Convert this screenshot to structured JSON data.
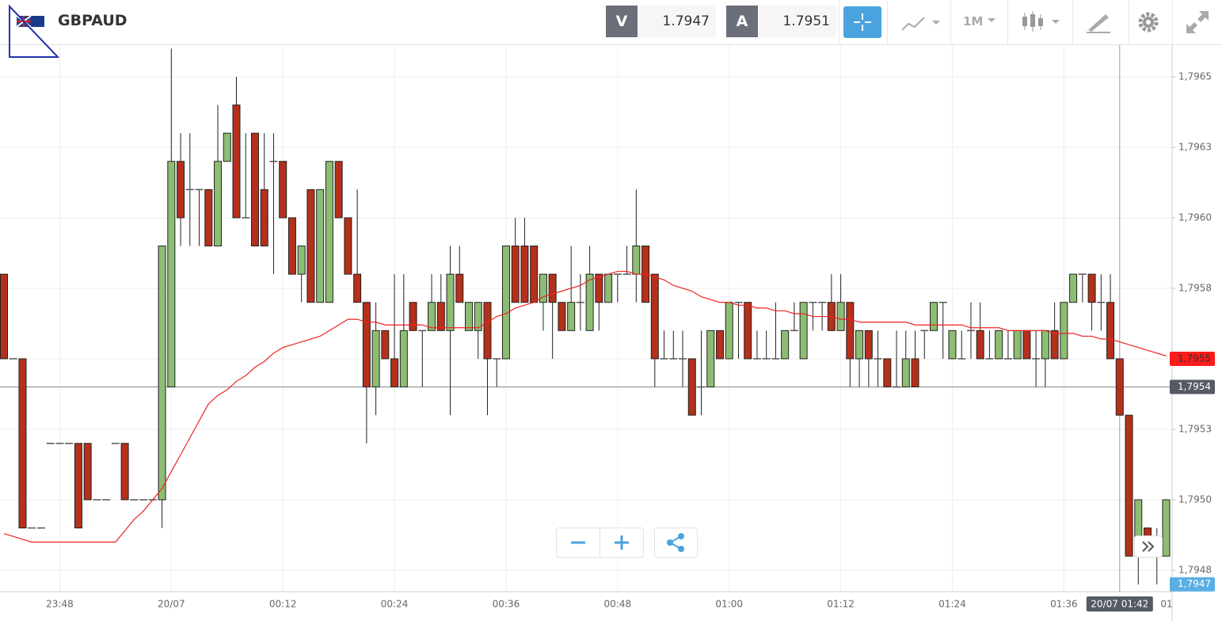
{
  "header": {
    "symbol": "GBPAUD",
    "sell_label": "V",
    "sell": 1.7947,
    "buy_label": "A",
    "buy": 1.7951,
    "timeframe": "1M"
  },
  "chart_data": {
    "type": "candlestick",
    "categories": [
      null,
      null,
      null,
      null,
      null,
      null,
      "23:48",
      null,
      null,
      null,
      null,
      null,
      null,
      null,
      null,
      null,
      null,
      null,
      "20/07",
      null,
      null,
      null,
      null,
      null,
      null,
      null,
      null,
      null,
      null,
      null,
      "00:12",
      null,
      null,
      null,
      null,
      null,
      null,
      null,
      null,
      null,
      null,
      null,
      "00:24",
      null,
      null,
      null,
      null,
      null,
      null,
      null,
      null,
      null,
      null,
      null,
      "00:36",
      null,
      null,
      null,
      null,
      null,
      null,
      null,
      null,
      null,
      null,
      null,
      "00:48",
      null,
      null,
      null,
      null,
      null,
      null,
      null,
      null,
      null,
      null,
      null,
      "01:00",
      null,
      null,
      null,
      null,
      null,
      null,
      null,
      null,
      null,
      null,
      null,
      "01:12",
      null,
      null,
      null,
      null,
      null,
      null,
      null,
      null,
      null,
      null,
      null,
      "01:24",
      null,
      null,
      null,
      null,
      null,
      null,
      null,
      null,
      null,
      null,
      null,
      "01:36",
      null,
      null,
      null,
      null,
      null,
      null,
      null,
      null,
      null,
      null,
      null
    ],
    "x_edge_label": "01",
    "open": [
      1.7958,
      1.7955,
      1.7955,
      1.7949,
      1.7949,
      1.7952,
      1.7952,
      1.7952,
      1.7952,
      1.7952,
      1.795,
      1.795,
      1.7952,
      1.7952,
      1.795,
      1.795,
      1.795,
      1.795,
      1.7954,
      1.7962,
      1.7961,
      1.7961,
      1.7961,
      1.7959,
      1.7962,
      1.7964,
      1.796,
      1.7963,
      1.7961,
      1.7962,
      1.7962,
      1.796,
      1.7958,
      1.7961,
      1.7957,
      1.7957,
      1.7962,
      1.796,
      1.7958,
      1.7957,
      1.7954,
      1.7956,
      1.7955,
      1.7954,
      1.7957,
      1.7956,
      1.7956,
      1.7957,
      1.7956,
      1.7958,
      1.7956,
      1.7956,
      1.7957,
      1.7955,
      1.7955,
      1.7959,
      1.7959,
      1.7959,
      1.7957,
      1.7958,
      1.7957,
      1.7956,
      1.7957,
      1.7956,
      1.7958,
      1.7957,
      1.7958,
      1.7958,
      1.7958,
      1.7959,
      1.7958,
      1.7955,
      1.7955,
      1.7955,
      1.7955,
      1.7954,
      1.7954,
      1.7956,
      1.7955,
      1.7957,
      1.7957,
      1.7955,
      1.7955,
      1.7955,
      1.7955,
      1.7956,
      1.7955,
      1.7957,
      1.7957,
      1.7957,
      1.7956,
      1.7957,
      1.7955,
      1.7956,
      1.7955,
      1.7955,
      1.7954,
      1.7954,
      1.7955,
      1.7956,
      1.7956,
      1.7957,
      1.7955,
      1.7955,
      1.7956,
      1.7956,
      1.7955,
      1.7955,
      1.7955,
      1.7955,
      1.7956,
      1.7955,
      1.7955,
      1.7956,
      1.7955,
      1.7957,
      1.7958,
      1.7958,
      1.7957,
      1.7957,
      1.7955,
      1.7953,
      1.7948,
      1.7949,
      1.7948,
      1.7948
    ],
    "high": [
      1.7958,
      1.7955,
      1.7955,
      1.7949,
      1.7949,
      1.7952,
      1.7952,
      1.7952,
      1.7952,
      1.7952,
      1.795,
      1.795,
      1.7952,
      1.7952,
      1.795,
      1.795,
      1.795,
      1.7959,
      1.7966,
      1.7963,
      1.7963,
      1.7961,
      1.7961,
      1.7964,
      1.7963,
      1.7965,
      1.7963,
      1.7963,
      1.7963,
      1.7963,
      1.7962,
      1.796,
      1.7959,
      1.7961,
      1.7961,
      1.7962,
      1.7962,
      1.796,
      1.7961,
      1.7957,
      1.7957,
      1.7956,
      1.7958,
      1.7958,
      1.7957,
      1.7956,
      1.7958,
      1.7958,
      1.7959,
      1.7959,
      1.7957,
      1.7957,
      1.7957,
      1.7955,
      1.7959,
      1.796,
      1.796,
      1.7959,
      1.7958,
      1.7958,
      1.7957,
      1.7959,
      1.7958,
      1.7959,
      1.7958,
      1.7958,
      1.7958,
      1.7959,
      1.7961,
      1.7959,
      1.7958,
      1.7956,
      1.7956,
      1.7956,
      1.7955,
      1.7956,
      1.7956,
      1.7956,
      1.7957,
      1.7957,
      1.7957,
      1.7956,
      1.7956,
      1.7957,
      1.7956,
      1.7957,
      1.7957,
      1.7957,
      1.7957,
      1.7958,
      1.7958,
      1.7957,
      1.7956,
      1.7956,
      1.7956,
      1.7955,
      1.7956,
      1.7956,
      1.7956,
      1.7956,
      1.7957,
      1.7957,
      1.7956,
      1.7956,
      1.7957,
      1.7957,
      1.7956,
      1.7956,
      1.7956,
      1.7956,
      1.7956,
      1.7956,
      1.7956,
      1.7957,
      1.7957,
      1.7958,
      1.7958,
      1.7958,
      1.7958,
      1.7958,
      1.7955,
      1.7953,
      1.795,
      1.7949,
      1.7949,
      1.795
    ],
    "low": [
      1.7955,
      1.7955,
      1.7949,
      1.7949,
      1.7949,
      1.7952,
      1.7952,
      1.7952,
      1.7949,
      1.795,
      1.795,
      1.795,
      1.7952,
      1.795,
      1.795,
      1.795,
      1.795,
      1.7949,
      1.7954,
      1.7959,
      1.7959,
      1.7959,
      1.7959,
      1.7959,
      1.7962,
      1.796,
      1.796,
      1.7959,
      1.7959,
      1.7958,
      1.796,
      1.7958,
      1.7957,
      1.7957,
      1.7957,
      1.7957,
      1.796,
      1.7958,
      1.7957,
      1.7952,
      1.7953,
      1.7955,
      1.7954,
      1.7954,
      1.7956,
      1.7954,
      1.7956,
      1.7956,
      1.7953,
      1.7957,
      1.7956,
      1.7955,
      1.7953,
      1.7954,
      1.7955,
      1.7957,
      1.7957,
      1.7957,
      1.7956,
      1.7955,
      1.7956,
      1.7956,
      1.7956,
      1.7956,
      1.7956,
      1.7957,
      1.7957,
      1.7958,
      1.7957,
      1.7957,
      1.7954,
      1.7955,
      1.7955,
      1.7954,
      1.7953,
      1.7953,
      1.7954,
      1.7955,
      1.7955,
      1.7955,
      1.7955,
      1.7955,
      1.7955,
      1.7955,
      1.7955,
      1.7956,
      1.7955,
      1.7956,
      1.7956,
      1.7956,
      1.7956,
      1.7954,
      1.7954,
      1.7954,
      1.7954,
      1.7954,
      1.7954,
      1.7954,
      1.7954,
      1.7955,
      1.7956,
      1.7955,
      1.7955,
      1.7955,
      1.7955,
      1.7955,
      1.7955,
      1.7955,
      1.7955,
      1.7955,
      1.7955,
      1.7954,
      1.7954,
      1.7955,
      1.7955,
      1.7957,
      1.7957,
      1.7956,
      1.7956,
      1.7955,
      1.7953,
      1.7948,
      1.7947,
      1.7948,
      1.7947,
      1.7948
    ],
    "close": [
      1.7955,
      1.7955,
      1.7949,
      1.7949,
      1.7949,
      1.7952,
      1.7952,
      1.7952,
      1.7949,
      1.795,
      1.795,
      1.795,
      1.7952,
      1.795,
      1.795,
      1.795,
      1.795,
      1.7959,
      1.7962,
      1.796,
      1.7961,
      1.7961,
      1.7959,
      1.7962,
      1.7963,
      1.796,
      1.796,
      1.7959,
      1.7959,
      1.7962,
      1.796,
      1.7958,
      1.7959,
      1.7957,
      1.7961,
      1.7962,
      1.796,
      1.7958,
      1.7957,
      1.7954,
      1.7956,
      1.7955,
      1.7954,
      1.7956,
      1.7956,
      1.7956,
      1.7957,
      1.7956,
      1.7958,
      1.7957,
      1.7957,
      1.7957,
      1.7955,
      1.7955,
      1.7959,
      1.7957,
      1.7957,
      1.7957,
      1.7958,
      1.7957,
      1.7956,
      1.7957,
      1.7957,
      1.7958,
      1.7957,
      1.7958,
      1.7958,
      1.7958,
      1.7959,
      1.7957,
      1.7955,
      1.7955,
      1.7955,
      1.7955,
      1.7953,
      1.7954,
      1.7956,
      1.7955,
      1.7957,
      1.7957,
      1.7955,
      1.7955,
      1.7955,
      1.7955,
      1.7956,
      1.7956,
      1.7957,
      1.7957,
      1.7957,
      1.7956,
      1.7957,
      1.7955,
      1.7956,
      1.7955,
      1.7955,
      1.7954,
      1.7954,
      1.7955,
      1.7954,
      1.7956,
      1.7957,
      1.7957,
      1.7956,
      1.7955,
      1.7956,
      1.7955,
      1.7955,
      1.7956,
      1.7955,
      1.7956,
      1.7955,
      1.7955,
      1.7956,
      1.7955,
      1.7957,
      1.7958,
      1.7958,
      1.7957,
      1.7957,
      1.7955,
      1.7953,
      1.7948,
      1.795,
      1.7948,
      1.7948,
      1.795
    ],
    "up_color": "#8dbd73",
    "down_color": "#b5301a",
    "doji_color": "#555555",
    "ma_color": "#ee2222",
    "ma_values": [
      1.79488,
      1.79487,
      1.79486,
      1.79485,
      1.79485,
      1.79485,
      1.79485,
      1.79485,
      1.79485,
      1.79485,
      1.79485,
      1.79485,
      1.79485,
      1.79489,
      1.79493,
      1.79496,
      1.795,
      1.79504,
      1.7951,
      1.79516,
      1.79522,
      1.79528,
      1.79534,
      1.79537,
      1.79539,
      1.79542,
      1.79544,
      1.79547,
      1.79549,
      1.79552,
      1.79554,
      1.79555,
      1.79556,
      1.79557,
      1.79558,
      1.7956,
      1.79562,
      1.79564,
      1.79564,
      1.79563,
      1.79563,
      1.79562,
      1.79562,
      1.79562,
      1.79562,
      1.79562,
      1.79561,
      1.79561,
      1.79561,
      1.79561,
      1.79561,
      1.79561,
      1.79563,
      1.79565,
      1.79566,
      1.79568,
      1.79569,
      1.7957,
      1.79572,
      1.79573,
      1.79574,
      1.79575,
      1.79576,
      1.79578,
      1.79579,
      1.7958,
      1.79581,
      1.79581,
      1.7958,
      1.7958,
      1.79579,
      1.79578,
      1.79576,
      1.79575,
      1.79574,
      1.79572,
      1.79571,
      1.7957,
      1.7957,
      1.79569,
      1.79569,
      1.79568,
      1.79568,
      1.79567,
      1.79567,
      1.79566,
      1.79566,
      1.79565,
      1.79565,
      1.79565,
      1.79564,
      1.79564,
      1.79563,
      1.79563,
      1.79563,
      1.79563,
      1.79563,
      1.79563,
      1.79562,
      1.79562,
      1.79562,
      1.79562,
      1.79562,
      1.79562,
      1.79561,
      1.79561,
      1.79561,
      1.79561,
      1.7956,
      1.7956,
      1.7956,
      1.7956,
      1.7956,
      1.79559,
      1.79559,
      1.79559,
      1.79558,
      1.79558,
      1.79557,
      1.79557,
      1.79556,
      1.79555,
      1.79554,
      1.79553,
      1.79552,
      1.79551
    ],
    "ylim": [
      1.794674,
      1.796615
    ],
    "yticks": [
      {
        "value": 1.79475,
        "label": "1,7948"
      },
      {
        "value": 1.795,
        "label": "1,7950"
      },
      {
        "value": 1.79525,
        "label": "1,7953"
      },
      {
        "value": 1.7955,
        "label": "1,7955"
      },
      {
        "value": 1.79575,
        "label": "1,7958"
      },
      {
        "value": 1.796,
        "label": "1,7960"
      },
      {
        "value": 1.79625,
        "label": "1,7963"
      },
      {
        "value": 1.7965,
        "label": "1,7965"
      }
    ],
    "grid": true,
    "markers": [
      {
        "value": 1.7955,
        "label": "1,7955",
        "color": "#ff1a1a"
      },
      {
        "value": 1.7954,
        "label": "1,7954",
        "color": "#555a63",
        "show_line": true
      },
      {
        "value": 1.7947,
        "label": "1,7947",
        "color": "#5aaee3"
      }
    ],
    "crosshair_label": "20/07 01:42"
  }
}
